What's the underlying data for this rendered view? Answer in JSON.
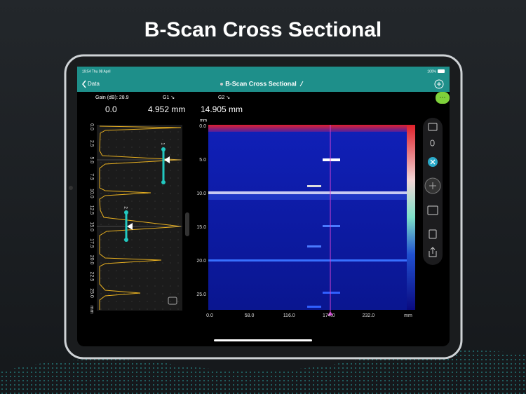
{
  "headline": "B-Scan Cross Sectional",
  "status_bar": {
    "time": "19:54 Thu 08 April",
    "battery": "100%"
  },
  "nav": {
    "back": "Data",
    "title": "B-Scan Cross Sectional"
  },
  "readouts": {
    "gain": "Gain (dB): 28.9",
    "g1_label": "G1 ↘",
    "g2_label": "G2 ↘",
    "value_0": "0.0",
    "value_g1": "4.952 mm",
    "value_g2": "14.905 mm"
  },
  "a_scan": {
    "ticks": [
      "0.0",
      "2.5",
      "5.0",
      "7.5",
      "10.0",
      "12.5",
      "15.0",
      "17.5",
      "20.0",
      "22.5",
      "25.0",
      "mm"
    ],
    "gate_1": "1",
    "gate_2": "2"
  },
  "b_scan": {
    "y_unit": "mm",
    "y_ticks": [
      "0.0",
      "5.0",
      "10.0",
      "15.0",
      "20.0",
      "25.0"
    ],
    "x_ticks": [
      "0.0",
      "58.0",
      "116.0",
      "174.0",
      "232.0",
      "mm"
    ]
  }
}
